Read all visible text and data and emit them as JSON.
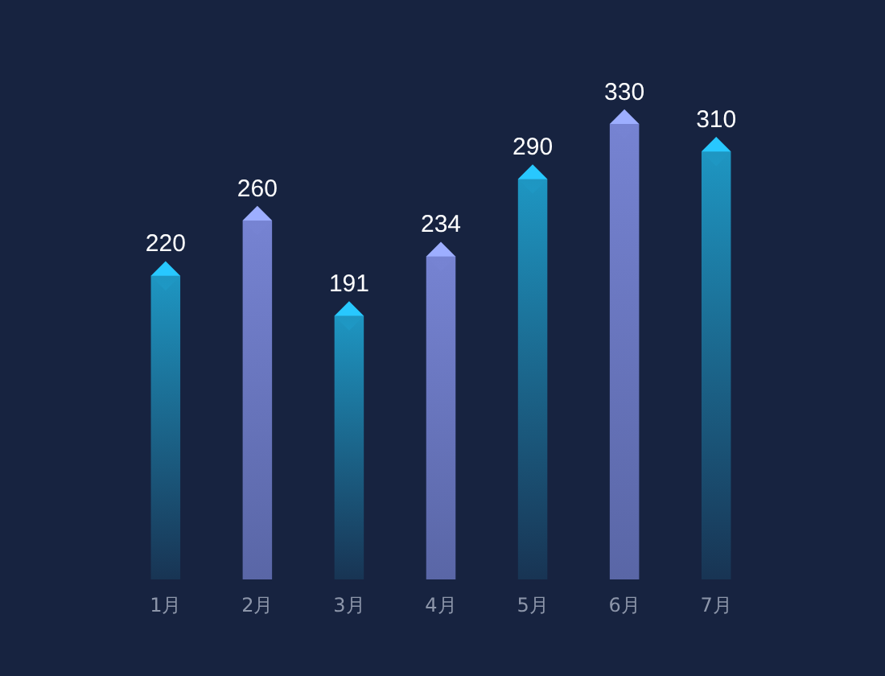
{
  "chart_data": {
    "type": "bar",
    "categories": [
      "1月",
      "2月",
      "3月",
      "4月",
      "5月",
      "6月",
      "7月"
    ],
    "values": [
      220,
      260,
      191,
      234,
      290,
      330,
      310
    ],
    "colors": [
      "#1e96c2",
      "#7683d2",
      "#1e96c2",
      "#7683d2",
      "#1e96c2",
      "#7683d2",
      "#1e96c2"
    ],
    "data_labels": true
  }
}
